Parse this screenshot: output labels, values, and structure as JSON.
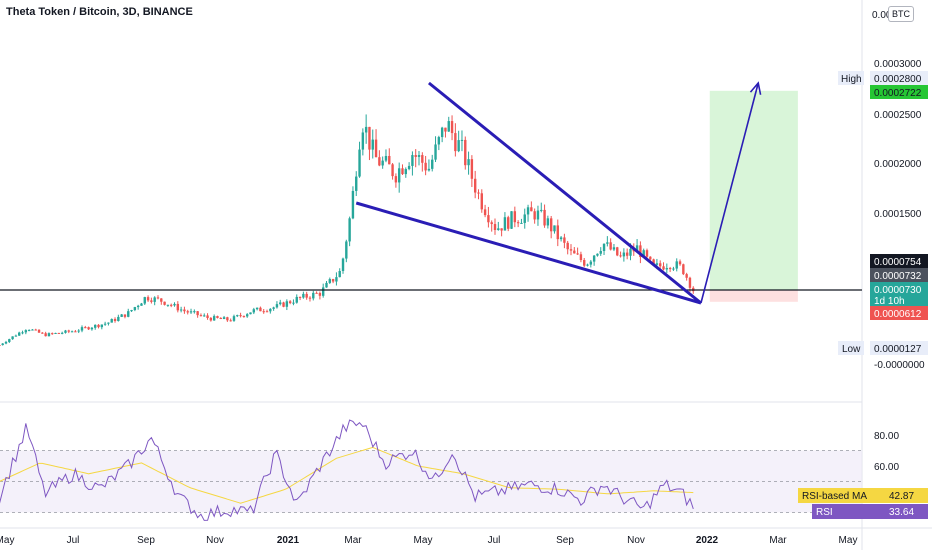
{
  "title": "Theta Token / Bitcoin, 3D, BINANCE",
  "currency_badge": "BTC",
  "colors": {
    "up": "#26a69a",
    "down": "#ef5350",
    "wedge": "#2a1db5",
    "rsi_line": "#7e57c2",
    "rsi_ma": "#f5d742",
    "target_zone": "#d9f5d9",
    "stop_zone": "#fde0e0",
    "support": "#131722"
  },
  "price_axis": {
    "ticks": [
      "0.0003000",
      "0.0002500",
      "0.0002000",
      "0.0001500",
      "-0.0000000"
    ],
    "top_clipped_label": "0.000350",
    "high_label": "High",
    "high_value": "0.0002800",
    "target_value": "0.0002722",
    "price_754": "0.0000754",
    "price_732": "0.0000732",
    "current_price": "0.0000730",
    "countdown": "1d 10h",
    "stop_value": "0.0000612",
    "low_label": "Low",
    "low_value": "0.0000127"
  },
  "rsi_axis": {
    "ticks": [
      "80.00",
      "60.00"
    ],
    "ma_label": "RSI-based MA",
    "ma_value": "42.87",
    "rsi_label": "RSI",
    "rsi_value": "33.64"
  },
  "time_axis": {
    "labels": [
      "May",
      "Jul",
      "Sep",
      "Nov",
      "2021",
      "Mar",
      "May",
      "Jul",
      "Sep",
      "Nov",
      "2022",
      "Mar",
      "May"
    ]
  },
  "chart_data": {
    "type": "candlestick",
    "symbol": "Theta Token / Bitcoin",
    "interval": "3D",
    "exchange": "BINANCE",
    "ylim": [
      -1e-05,
      0.00035
    ],
    "rsi_ylim": [
      20,
      95
    ],
    "close_path": [
      [
        "2020-04-25",
        1.8e-05
      ],
      [
        "2020-05-20",
        3.5e-05
      ],
      [
        "2020-06-05",
        2.8e-05
      ],
      [
        "2020-07-01",
        3.2e-05
      ],
      [
        "2020-08-01",
        4e-05
      ],
      [
        "2020-08-20",
        5e-05
      ],
      [
        "2020-09-05",
        6.6e-05
      ],
      [
        "2020-09-20",
        6.2e-05
      ],
      [
        "2020-10-10",
        5.2e-05
      ],
      [
        "2020-11-01",
        4.5e-05
      ],
      [
        "2020-11-20",
        4.3e-05
      ],
      [
        "2020-12-10",
        5.2e-05
      ],
      [
        "2021-01-01",
        5.6e-05
      ],
      [
        "2021-01-20",
        6.4e-05
      ],
      [
        "2021-02-10",
        7e-05
      ],
      [
        "2021-03-01",
        9.2e-05
      ],
      [
        "2021-03-10",
        0.00015
      ],
      [
        "2021-03-20",
        0.000245
      ],
      [
        "2021-04-01",
        0.000205
      ],
      [
        "2021-04-20",
        0.00019
      ],
      [
        "2021-05-05",
        0.00021
      ],
      [
        "2021-05-20",
        0.000195
      ],
      [
        "2021-06-05",
        0.00024
      ],
      [
        "2021-06-20",
        0.00021
      ],
      [
        "2021-07-05",
        0.000165
      ],
      [
        "2021-07-20",
        0.000135
      ],
      [
        "2021-08-05",
        0.000145
      ],
      [
        "2021-08-25",
        0.00015
      ],
      [
        "2021-09-05",
        0.00014
      ],
      [
        "2021-09-25",
        0.00011
      ],
      [
        "2021-10-10",
        0.0001
      ],
      [
        "2021-10-25",
        0.00012
      ],
      [
        "2021-11-10",
        0.000105
      ],
      [
        "2021-11-25",
        0.000115
      ],
      [
        "2021-12-10",
        9.5e-05
      ],
      [
        "2021-12-25",
        0.0001
      ],
      [
        "2022-01-05",
        9.5e-05
      ],
      [
        "2022-01-15",
        7.3e-05
      ]
    ],
    "rsi_path": [
      [
        "2020-04-25",
        40
      ],
      [
        "2020-05-20",
        85
      ],
      [
        "2020-06-05",
        42
      ],
      [
        "2020-07-01",
        55
      ],
      [
        "2020-07-25",
        45
      ],
      [
        "2020-08-20",
        60
      ],
      [
        "2020-09-10",
        78
      ],
      [
        "2020-10-05",
        40
      ],
      [
        "2020-10-25",
        28
      ],
      [
        "2020-11-20",
        32
      ],
      [
        "2020-12-10",
        30
      ],
      [
        "2021-01-01",
        68
      ],
      [
        "2021-01-20",
        35
      ],
      [
        "2021-02-10",
        60
      ],
      [
        "2021-03-05",
        85
      ],
      [
        "2021-03-20",
        88
      ],
      [
        "2021-04-10",
        62
      ],
      [
        "2021-05-05",
        70
      ],
      [
        "2021-05-25",
        50
      ],
      [
        "2021-06-10",
        70
      ],
      [
        "2021-07-01",
        40
      ],
      [
        "2021-07-25",
        44
      ],
      [
        "2021-08-20",
        48
      ],
      [
        "2021-09-15",
        45
      ],
      [
        "2021-10-05",
        38
      ],
      [
        "2021-10-25",
        48
      ],
      [
        "2021-11-15",
        38
      ],
      [
        "2021-12-01",
        32
      ],
      [
        "2021-12-20",
        48
      ],
      [
        "2022-01-05",
        42
      ],
      [
        "2022-01-15",
        33.64
      ]
    ],
    "rsi_ma_path": [
      [
        "2020-04-25",
        50
      ],
      [
        "2020-06-01",
        62
      ],
      [
        "2020-07-15",
        55
      ],
      [
        "2020-09-01",
        62
      ],
      [
        "2020-10-15",
        46
      ],
      [
        "2020-11-30",
        36
      ],
      [
        "2021-01-10",
        45
      ],
      [
        "2021-02-25",
        65
      ],
      [
        "2021-03-30",
        72
      ],
      [
        "2021-05-10",
        60
      ],
      [
        "2021-06-20",
        55
      ],
      [
        "2021-08-01",
        46
      ],
      [
        "2021-09-15",
        45
      ],
      [
        "2021-10-30",
        42
      ],
      [
        "2021-12-10",
        44
      ],
      [
        "2022-01-15",
        42.87
      ]
    ],
    "rsi_levels": [
      70,
      50,
      30
    ],
    "drawings": {
      "wedge_upper": [
        [
          "2021-05-20",
          0.00028
        ],
        [
          "2022-01-22",
          6e-05
        ]
      ],
      "wedge_lower": [
        [
          "2021-03-15",
          0.00016
        ],
        [
          "2022-01-22",
          6e-05
        ]
      ],
      "breakout_arrow": [
        [
          "2022-01-22",
          6e-05
        ],
        [
          "2022-03-15",
          0.00028
        ]
      ],
      "support_level": 7.3e-05,
      "target_zone": {
        "from": "2022-01-30",
        "to": "2022-04-20",
        "top": 0.0002722,
        "bottom": 7.3e-05
      },
      "stop_zone": {
        "from": "2022-01-30",
        "to": "2022-04-20",
        "top": 7.3e-05,
        "bottom": 6.12e-05
      }
    }
  }
}
